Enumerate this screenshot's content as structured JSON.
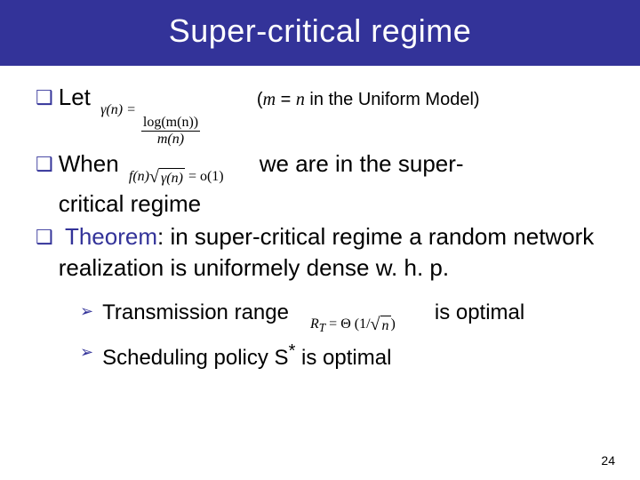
{
  "colors": {
    "titlebar_bg": "#333399",
    "titlebar_fg": "#ffffff",
    "bullet_mark": "#333399",
    "keyword": "#333399",
    "body_fg": "#000000",
    "page_bg": "#ffffff"
  },
  "title": "Super-critical regime",
  "bullets": {
    "b1_let": "Let",
    "b1_note_open": "(",
    "b1_note_var_m": "m",
    "b1_note_eq": " = ",
    "b1_note_var_n": "n",
    "b1_note_rest": " in the Uniform Model)",
    "b2_when": "When",
    "b2_rest_a": "we are in the super-",
    "b2_rest_b": "critical regime",
    "b3_kw": "Theorem",
    "b3_rest": ": in super-critical regime a random network realization is uniformely dense w. h. p."
  },
  "sub": {
    "s1_a": "Transmission range",
    "s1_b": "is optimal",
    "s2_a": "Scheduling policy S",
    "s2_sup": "*",
    "s2_b": " is optimal"
  },
  "formulas": {
    "gamma": {
      "lhs": "γ(n) = ",
      "num": "log(m(n))",
      "den": "m(n)"
    },
    "when": {
      "f": "f(n)",
      "sqrt_arg": "γ(n)",
      "rhs": " = o(1)"
    },
    "rt": {
      "lhs": "R",
      "sub": "T",
      "mid": " = Θ (1/",
      "sqrt_arg": "n",
      "end": ")"
    }
  },
  "page_number": "24",
  "glyphs": {
    "square_bullet": "❑",
    "chevron": "➢"
  }
}
